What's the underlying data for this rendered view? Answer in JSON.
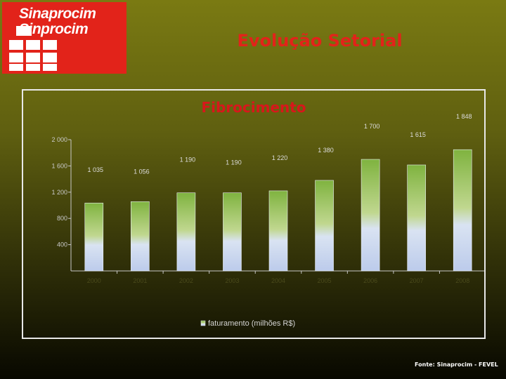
{
  "logo": {
    "line1": "Sinaprocim",
    "line2": "Sinprocim"
  },
  "header": {
    "title": "Evolução Setorial"
  },
  "footer": {
    "source": "Fonte: Sinaprocim - FEVEL"
  },
  "colors": {
    "brand_red": "#e2231a",
    "bar_top": "#8cbf4a",
    "bar_bottom": "#c7d3ee"
  },
  "chart_data": {
    "type": "bar",
    "title": "Fibrocimento",
    "categories": [
      "2000",
      "2001",
      "2002",
      "2003",
      "2004",
      "2005",
      "2006",
      "2007",
      "2008"
    ],
    "series": [
      {
        "name": "faturamento (milhões R$)",
        "values": [
          1035,
          1056,
          1190,
          1190,
          1220,
          1380,
          1700,
          1615,
          1848
        ]
      }
    ],
    "data_labels": [
      "1 035",
      "1 056",
      "1 190",
      "1 190",
      "1 220",
      "1 380",
      "1 700",
      "1 615",
      "1 848"
    ],
    "yticks": [
      400,
      800,
      1200,
      1600,
      2000
    ],
    "ytick_labels": [
      "400",
      "800",
      "1 200",
      "1 600",
      "2 000"
    ],
    "ylim": [
      0,
      2000
    ],
    "grid": false,
    "legend": "bottom-center"
  }
}
